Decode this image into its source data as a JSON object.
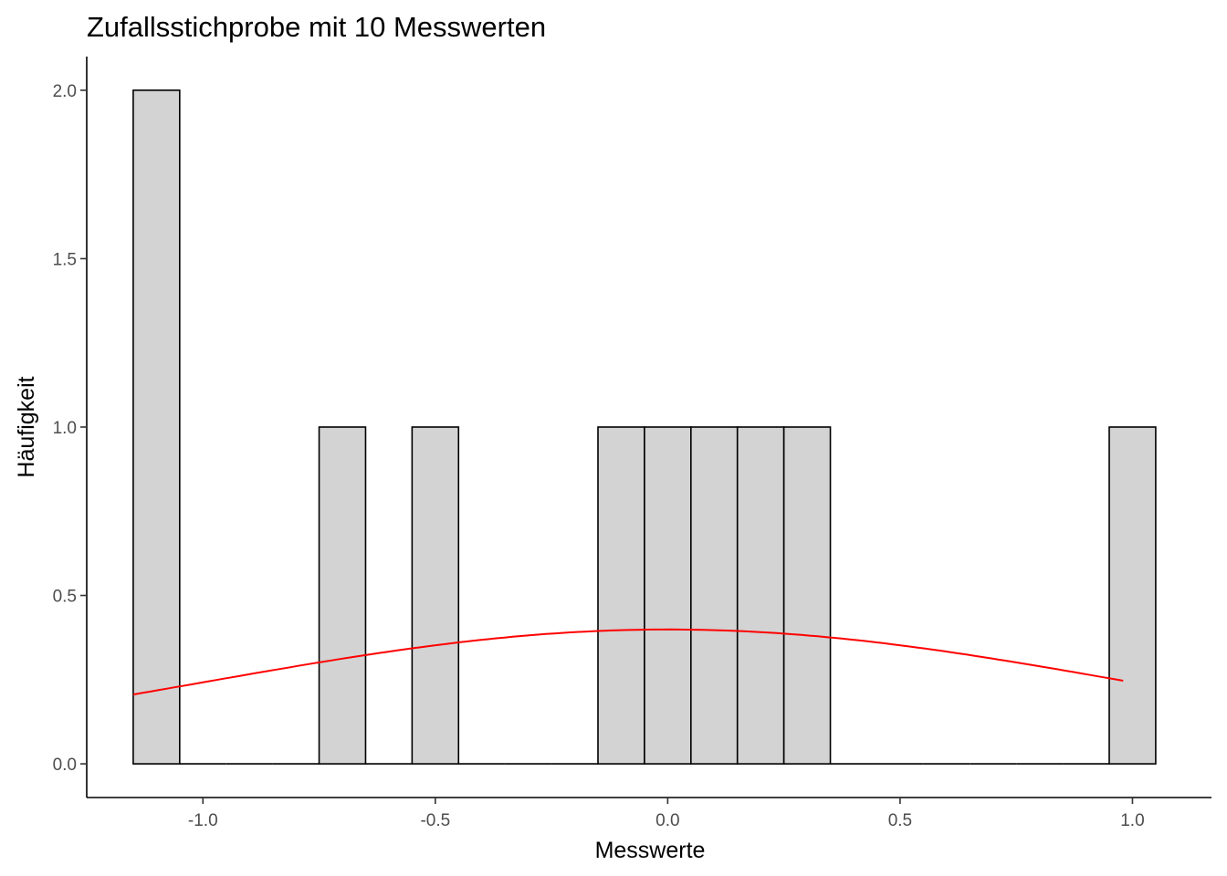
{
  "chart_data": {
    "type": "bar",
    "title": "Zufallsstichprobe mit 10 Messwerten",
    "xlabel": "Messwerte",
    "ylabel": "Häufigkeit",
    "xlim": [
      -1.25,
      1.17
    ],
    "ylim": [
      -0.1,
      2.1
    ],
    "xticks": [
      -1.0,
      -0.5,
      0.0,
      0.5,
      1.0
    ],
    "xtick_labels": [
      "-1.0",
      "-0.5",
      "0.0",
      "0.5",
      "1.0"
    ],
    "yticks": [
      0.0,
      0.5,
      1.0,
      1.5,
      2.0
    ],
    "ytick_labels": [
      "0.0",
      "0.5",
      "1.0",
      "1.5",
      "2.0"
    ],
    "bin_width": 0.1,
    "bins": [
      {
        "x": -1.1,
        "count": 2
      },
      {
        "x": -1.0,
        "count": 0
      },
      {
        "x": -0.9,
        "count": 0
      },
      {
        "x": -0.8,
        "count": 0
      },
      {
        "x": -0.7,
        "count": 1
      },
      {
        "x": -0.6,
        "count": 0
      },
      {
        "x": -0.5,
        "count": 1
      },
      {
        "x": -0.4,
        "count": 0
      },
      {
        "x": -0.3,
        "count": 0
      },
      {
        "x": -0.2,
        "count": 0
      },
      {
        "x": -0.1,
        "count": 1
      },
      {
        "x": 0.0,
        "count": 1
      },
      {
        "x": 0.1,
        "count": 1
      },
      {
        "x": 0.2,
        "count": 1
      },
      {
        "x": 0.3,
        "count": 1
      },
      {
        "x": 0.4,
        "count": 0
      },
      {
        "x": 0.5,
        "count": 0
      },
      {
        "x": 0.6,
        "count": 0
      },
      {
        "x": 0.7,
        "count": 0
      },
      {
        "x": 0.8,
        "count": 0
      },
      {
        "x": 0.9,
        "count": 0
      },
      {
        "x": 1.0,
        "count": 1
      }
    ],
    "density_curve": {
      "type": "line",
      "function": "normal density, mean 0, sd 1",
      "x_range": [
        -1.15,
        0.98
      ],
      "color": "#ff0000"
    },
    "bar_fill": "#d3d3d3",
    "bar_stroke": "#000000",
    "grid": false,
    "legend": "none"
  }
}
